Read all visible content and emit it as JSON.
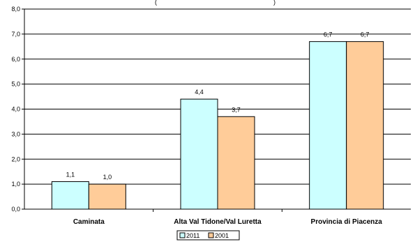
{
  "chart_data": {
    "type": "bar",
    "title": "(",
    "title_right": ")",
    "categories": [
      "Caminata",
      "Alta Val Tidone/Val Luretta",
      "Provincia di Piacenza"
    ],
    "series": [
      {
        "name": "2011",
        "values": [
          1.1,
          4.4,
          6.7
        ],
        "labels": [
          "1,1",
          "4,4",
          "6,7"
        ],
        "color": "#CCFFFF"
      },
      {
        "name": "2001",
        "values": [
          1.0,
          3.7,
          6.7
        ],
        "labels": [
          "1,0",
          "3,7",
          "6,7"
        ],
        "color": "#FFCC99"
      }
    ],
    "ylim": [
      0,
      8
    ],
    "yticks": [
      0,
      1,
      2,
      3,
      4,
      5,
      6,
      7,
      8
    ],
    "ytick_labels": [
      "0,0",
      "1,0",
      "2,0",
      "3,0",
      "4,0",
      "5,0",
      "6,0",
      "7,0",
      "8,0"
    ],
    "grid": true,
    "legend": "bottom-center"
  }
}
